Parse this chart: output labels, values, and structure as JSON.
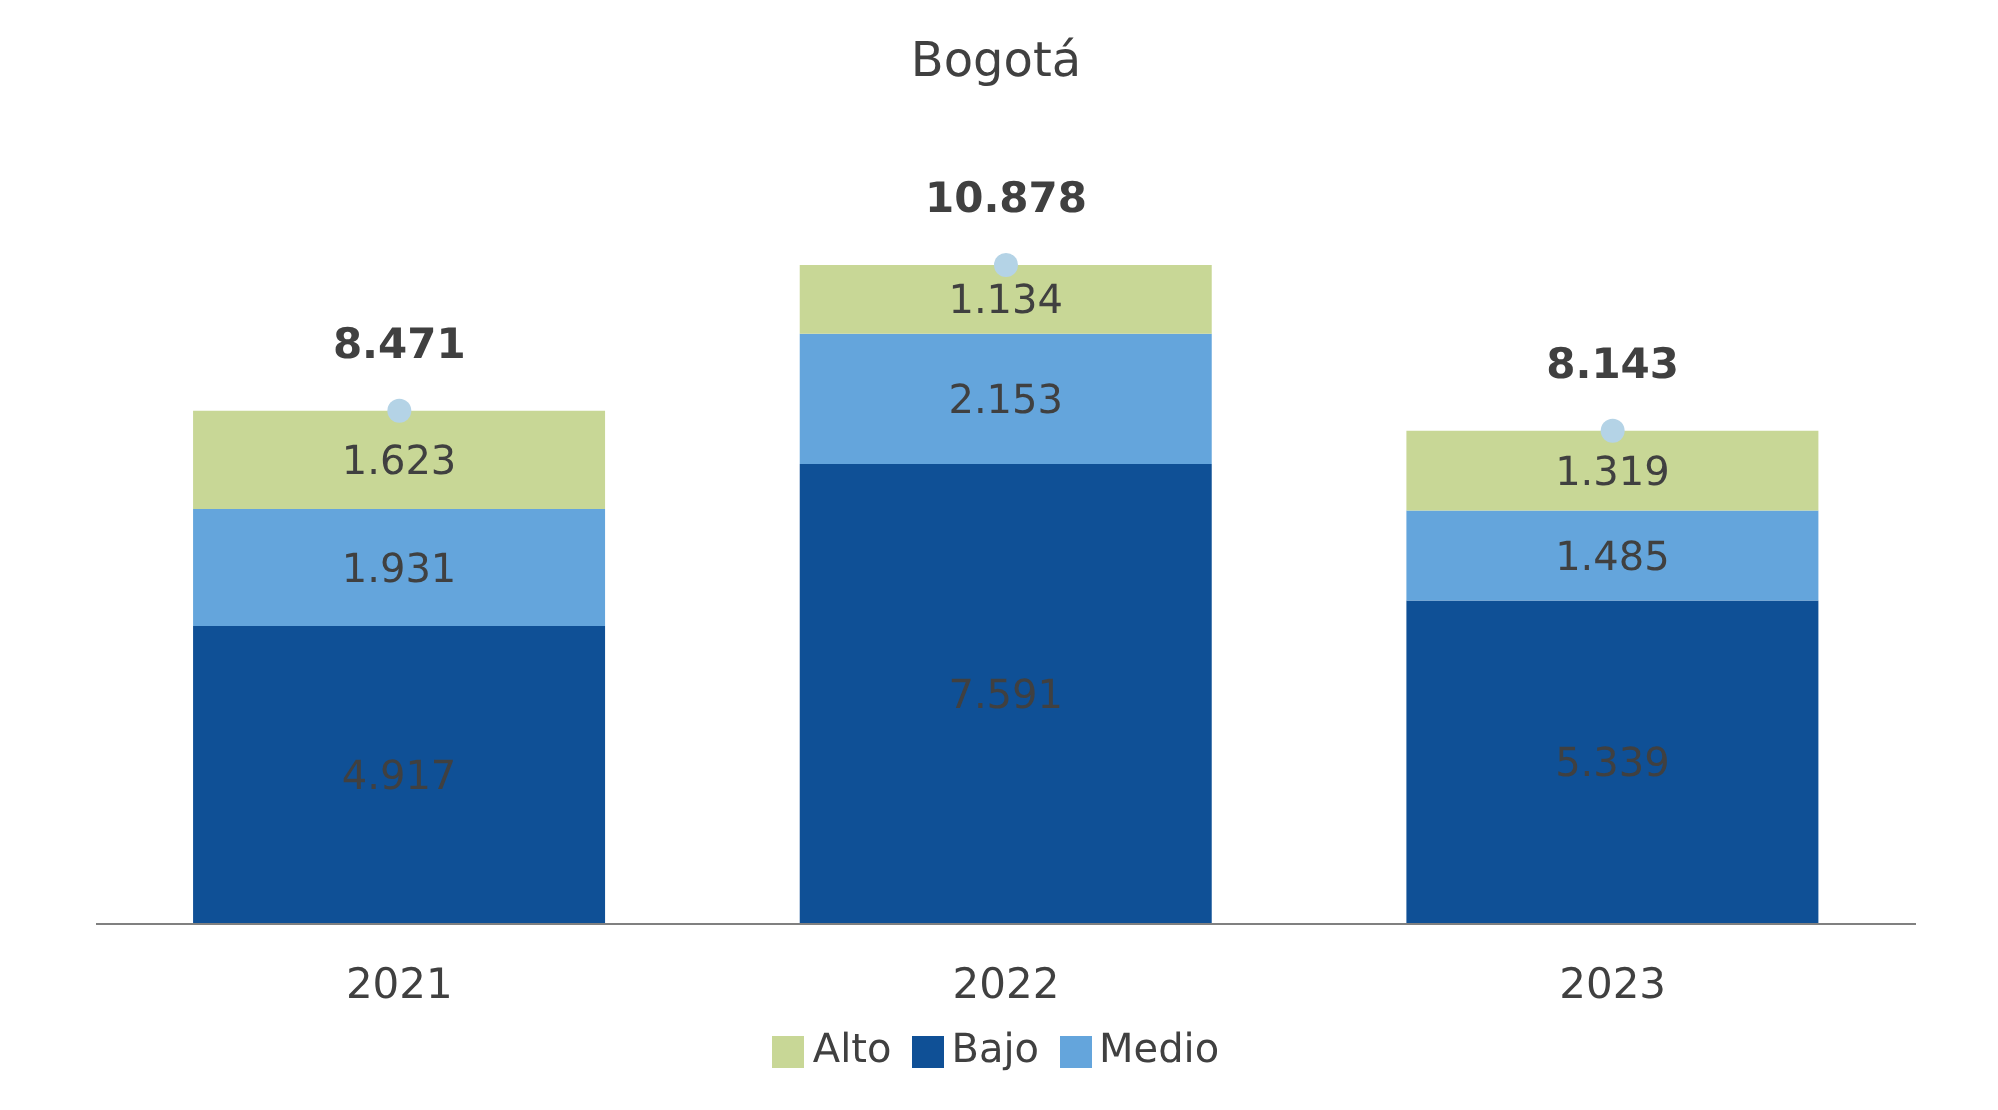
{
  "chart_data": {
    "type": "bar",
    "title": "Bogotá",
    "categories": [
      "2021",
      "2022",
      "2023"
    ],
    "stacked": true,
    "legend": "bottom",
    "grid": false,
    "series": [
      {
        "name": "Bajo",
        "color": "#0f5096",
        "values": [
          4917,
          7591,
          5339
        ],
        "value_labels": [
          "4.917",
          "7.591",
          "5.339"
        ]
      },
      {
        "name": "Medio",
        "color": "#64a5dc",
        "values": [
          1931,
          2153,
          1485
        ],
        "value_labels": [
          "1.931",
          "2.153",
          "1.485"
        ]
      },
      {
        "name": "Alto",
        "color": "#c8d796",
        "values": [
          1623,
          1134,
          1319
        ],
        "value_labels": [
          "1.623",
          "1.134",
          "1.319"
        ]
      },
      {
        "type": "scatter",
        "color": "#b4d3e6",
        "values": [
          8471,
          10878,
          8143
        ],
        "marker": "circle"
      }
    ],
    "totals": [
      "8.471",
      "10.878",
      "8.143"
    ]
  }
}
